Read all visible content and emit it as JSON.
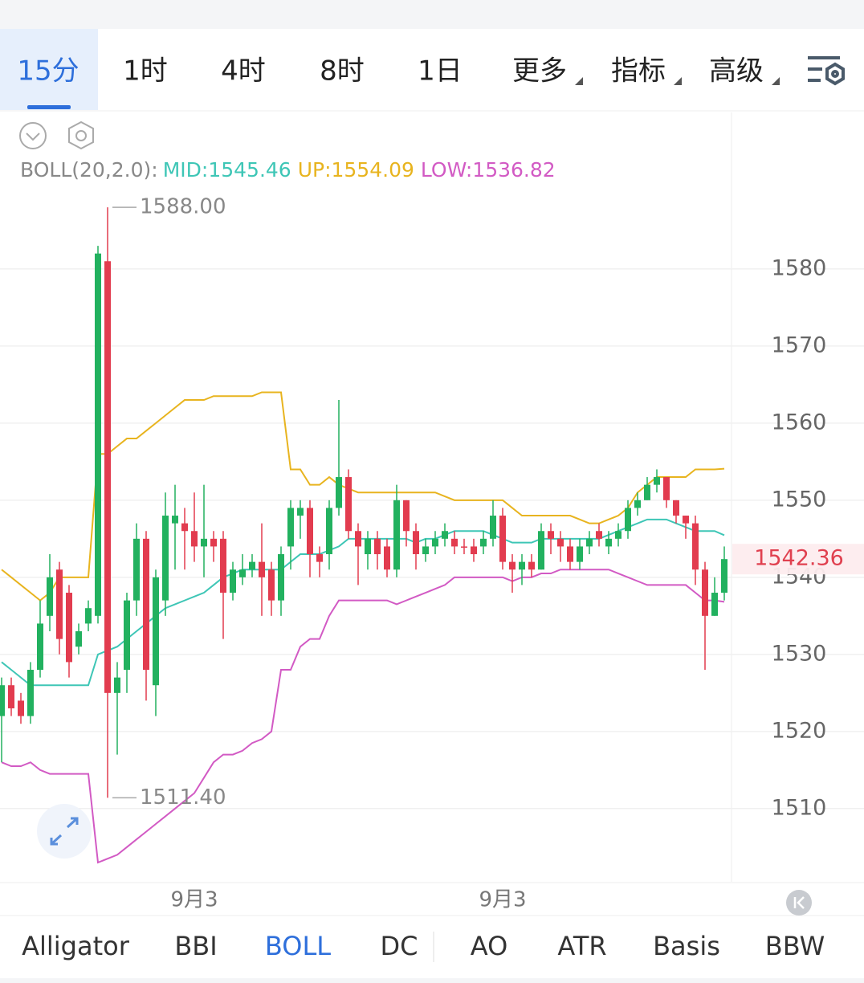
{
  "tabs": {
    "items": [
      "15分",
      "1时",
      "4时",
      "8时",
      "1日",
      "更多",
      "指标",
      "高级"
    ],
    "active": 0
  },
  "indicator_tabs": {
    "items": [
      "Alligator",
      "BBI",
      "BOLL",
      "DC",
      "AO",
      "ATR",
      "Basis",
      "BBW"
    ],
    "active": 2
  },
  "chart_data": {
    "type": "candlestick",
    "indicator_label": "BOLL(20,2.0):",
    "categories": [
      null,
      null,
      null,
      null,
      null,
      null,
      null,
      null,
      null,
      null,
      null,
      null,
      null,
      null,
      null,
      null,
      null,
      null,
      null,
      null,
      "9月3",
      null,
      null,
      null,
      null,
      null,
      null,
      null,
      null,
      null,
      null,
      null,
      null,
      null,
      null,
      null,
      null,
      null,
      null,
      null,
      null,
      null,
      null,
      null,
      null,
      null,
      null,
      null,
      null,
      null,
      null,
      null,
      "9月3",
      null,
      null,
      null,
      null,
      null,
      null,
      null,
      null,
      null,
      null,
      null,
      null,
      null,
      null,
      null,
      null,
      null,
      null,
      null,
      null,
      null,
      null,
      null
    ],
    "open": [
      1522,
      1526,
      1524,
      1522,
      1528,
      1535,
      1541,
      1538,
      1531,
      1534,
      1535,
      1581,
      1525,
      1528,
      1537,
      1545,
      1526,
      1537,
      1547,
      1547,
      1546,
      1544,
      1545,
      1545,
      1538,
      1540,
      1541,
      1542,
      1541,
      1537,
      1544,
      1548,
      1549,
      1543,
      1543,
      1549,
      1553,
      1546,
      1543,
      1545,
      1544,
      1541,
      1550,
      1546,
      1543,
      1544,
      1545,
      1545,
      1544,
      1544,
      1544,
      1545,
      1548,
      1542,
      1541,
      1542,
      1541,
      1546,
      1545,
      1544,
      1542,
      1544,
      1546,
      1544,
      1545,
      1546,
      1549,
      1550,
      1552,
      1553,
      1550,
      1548,
      1547,
      1541,
      1535,
      1538
    ],
    "high": [
      1527,
      1527,
      1525,
      1529,
      1537,
      1543,
      1542,
      1539,
      1534,
      1537,
      1583,
      1588,
      1529,
      1538,
      1547,
      1546,
      1541,
      1551,
      1552,
      1549,
      1551,
      1552,
      1546,
      1546,
      1542,
      1543,
      1543,
      1547,
      1542,
      1544,
      1550,
      1550,
      1550,
      1544,
      1550,
      1563,
      1554,
      1547,
      1546,
      1546,
      1545,
      1552,
      1550,
      1547,
      1545,
      1546,
      1547,
      1546,
      1545,
      1545,
      1546,
      1550,
      1549,
      1543,
      1543,
      1543,
      1547,
      1547,
      1546,
      1545,
      1545,
      1546,
      1547,
      1546,
      1547,
      1550,
      1551,
      1553,
      1554,
      1553,
      1550,
      1548,
      1548,
      1542,
      1540,
      1544
    ],
    "low": [
      1516,
      1522,
      1521,
      1521,
      1527,
      1533,
      1530,
      1527,
      1530,
      1533,
      1534,
      1511.4,
      1517,
      1525,
      1535,
      1524,
      1522,
      1535,
      1541,
      1541,
      1542,
      1540,
      1542,
      1532,
      1537,
      1539,
      1540,
      1535,
      1535,
      1535,
      1541,
      1545,
      1540,
      1540,
      1541,
      1548,
      1545,
      1539,
      1541,
      1541,
      1540,
      1540,
      1544,
      1541,
      1542,
      1543,
      1544,
      1543,
      1543,
      1542,
      1543,
      1544,
      1541,
      1538,
      1539,
      1540,
      1541,
      1543,
      1542,
      1541,
      1541,
      1543,
      1544,
      1543,
      1544,
      1545,
      1548,
      1550,
      1551,
      1549,
      1547,
      1545,
      1539,
      1528,
      1535,
      1537
    ],
    "close": [
      1526,
      1523,
      1522,
      1528,
      1534,
      1540,
      1532,
      1529,
      1533,
      1536,
      1582,
      1525,
      1527,
      1537,
      1545,
      1528,
      1540,
      1548,
      1548,
      1546,
      1544,
      1545,
      1544,
      1538,
      1541,
      1541,
      1542,
      1540,
      1537,
      1543,
      1549,
      1549,
      1543,
      1542,
      1549,
      1553,
      1546,
      1544,
      1545,
      1543,
      1541,
      1550,
      1546,
      1543,
      1544,
      1545,
      1546,
      1544,
      1544,
      1543,
      1545,
      1548,
      1542,
      1541,
      1542,
      1541,
      1546,
      1545,
      1544,
      1542,
      1544,
      1545,
      1545,
      1545,
      1546,
      1549,
      1550,
      1552,
      1553,
      1550,
      1548,
      1547,
      1541,
      1535,
      1538,
      1542.36
    ],
    "up_color": "#22b15f",
    "down_color": "#e23c4f",
    "series": [
      {
        "name": "MID",
        "legend_label": "MID:1545.46",
        "color": "#3ec6b6",
        "values": [
          1529,
          1528,
          1527,
          1526,
          1526,
          1526,
          1526,
          1526,
          1526,
          1526,
          1530,
          1530.5,
          1531,
          1532,
          1533,
          1534,
          1535,
          1536,
          1536.5,
          1537,
          1537.5,
          1538,
          1539,
          1540,
          1540.5,
          1541,
          1541,
          1541,
          1541,
          1541,
          1542,
          1543,
          1543,
          1543,
          1543.5,
          1544,
          1545,
          1545,
          1545,
          1545,
          1545,
          1545,
          1545,
          1544.5,
          1545,
          1545,
          1545.5,
          1546,
          1546,
          1546,
          1546,
          1545.5,
          1545,
          1544.5,
          1544.5,
          1544.5,
          1545,
          1545,
          1545,
          1545,
          1545,
          1545,
          1545,
          1545.5,
          1546,
          1546.5,
          1547,
          1547.5,
          1547.5,
          1547.5,
          1547,
          1546.5,
          1546,
          1546,
          1546,
          1545.46
        ]
      },
      {
        "name": "UP",
        "legend_label": "UP:1554.09",
        "color": "#e8b41f",
        "values": [
          1541,
          1540,
          1539,
          1538,
          1537,
          1538,
          1540,
          1540,
          1540,
          1540,
          1556,
          1556,
          1557,
          1558,
          1558,
          1559,
          1560,
          1561,
          1562,
          1563,
          1563,
          1563,
          1563.5,
          1563.5,
          1563.5,
          1563.5,
          1563.5,
          1564,
          1564,
          1564,
          1554,
          1554,
          1552,
          1552,
          1553,
          1552,
          1551.5,
          1551,
          1551,
          1551,
          1551,
          1551,
          1551,
          1551,
          1551,
          1551,
          1550.5,
          1550,
          1550,
          1550,
          1550,
          1550,
          1550,
          1549,
          1548,
          1548,
          1548,
          1548,
          1548,
          1548,
          1547.5,
          1547,
          1547,
          1547.5,
          1548,
          1549,
          1551,
          1552,
          1553,
          1553,
          1553,
          1553,
          1554,
          1554,
          1554,
          1554.09
        ]
      },
      {
        "name": "LOW",
        "legend_label": "LOW:1536.82",
        "color": "#d25ac4",
        "values": [
          1516,
          1515.5,
          1515.5,
          1516,
          1515,
          1514.5,
          1514.5,
          1514.5,
          1514.5,
          1514.5,
          1503,
          1503.5,
          1504,
          1505,
          1506,
          1507,
          1508,
          1509,
          1510,
          1511,
          1512,
          1514,
          1516,
          1517,
          1517,
          1517.5,
          1518.5,
          1519,
          1520,
          1528,
          1528,
          1531,
          1532,
          1532,
          1535,
          1537,
          1537,
          1537,
          1537,
          1537,
          1537,
          1536.5,
          1537,
          1537.5,
          1538,
          1538.5,
          1539,
          1540,
          1540,
          1540,
          1540,
          1540,
          1540,
          1539.5,
          1540,
          1540,
          1540.5,
          1540.5,
          1541,
          1541,
          1541,
          1541,
          1541,
          1541,
          1540.5,
          1540,
          1539.5,
          1539,
          1539,
          1539,
          1539,
          1539,
          1538,
          1537,
          1537,
          1536.82
        ]
      }
    ],
    "annotations": [
      {
        "value": 1588,
        "label": "1588.00"
      },
      {
        "value": 1511.4,
        "label": "1511.40"
      }
    ],
    "last_price": 1542.36,
    "ylim": [
      1500.5,
      1600.3
    ],
    "yticks": [
      1510,
      1520,
      1530,
      1540,
      1550,
      1560,
      1570,
      1580
    ],
    "grid": true
  }
}
